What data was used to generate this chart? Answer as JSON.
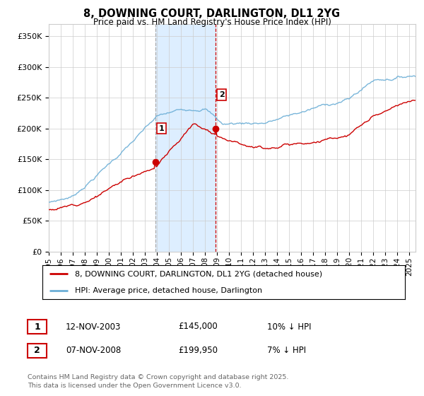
{
  "title": "8, DOWNING COURT, DARLINGTON, DL1 2YG",
  "subtitle": "Price paid vs. HM Land Registry's House Price Index (HPI)",
  "ylabel_ticks": [
    "£0",
    "£50K",
    "£100K",
    "£150K",
    "£200K",
    "£250K",
    "£300K",
    "£350K"
  ],
  "ylim": [
    0,
    370000
  ],
  "xlim_start": 1995.0,
  "xlim_end": 2025.5,
  "sale1_date": 2003.87,
  "sale1_price": 145000,
  "sale1_label": "1",
  "sale2_date": 2008.87,
  "sale2_price": 199950,
  "sale2_label": "2",
  "legend_line1": "8, DOWNING COURT, DARLINGTON, DL1 2YG (detached house)",
  "legend_line2": "HPI: Average price, detached house, Darlington",
  "table_row1": [
    "1",
    "12-NOV-2003",
    "£145,000",
    "10% ↓ HPI"
  ],
  "table_row2": [
    "2",
    "07-NOV-2008",
    "£199,950",
    "7% ↓ HPI"
  ],
  "footer": "Contains HM Land Registry data © Crown copyright and database right 2025.\nThis data is licensed under the Open Government Licence v3.0.",
  "hpi_color": "#6baed6",
  "price_color": "#cc0000",
  "shade_color": "#ddeeff",
  "vline1_color": "#aaaaaa",
  "vline2_color": "#cc0000",
  "background_color": "#ffffff"
}
